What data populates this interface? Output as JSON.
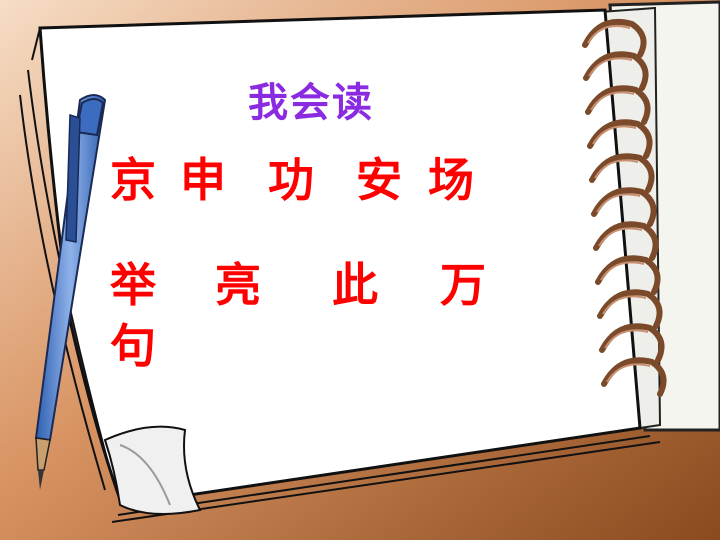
{
  "title": "我会读",
  "line1": [
    "京",
    "申",
    "功",
    "安",
    "场"
  ],
  "line2": [
    "举",
    "亮",
    "此",
    "万"
  ],
  "line3": [
    "句"
  ],
  "colors": {
    "title": "#8a2be2",
    "characters": "#ff0000",
    "background": "#c27a45",
    "paper": "#ffffff",
    "pen": "#4a7fd0"
  },
  "icons": [
    "notebook-icon",
    "pen-icon",
    "spiral-binding-icon"
  ]
}
